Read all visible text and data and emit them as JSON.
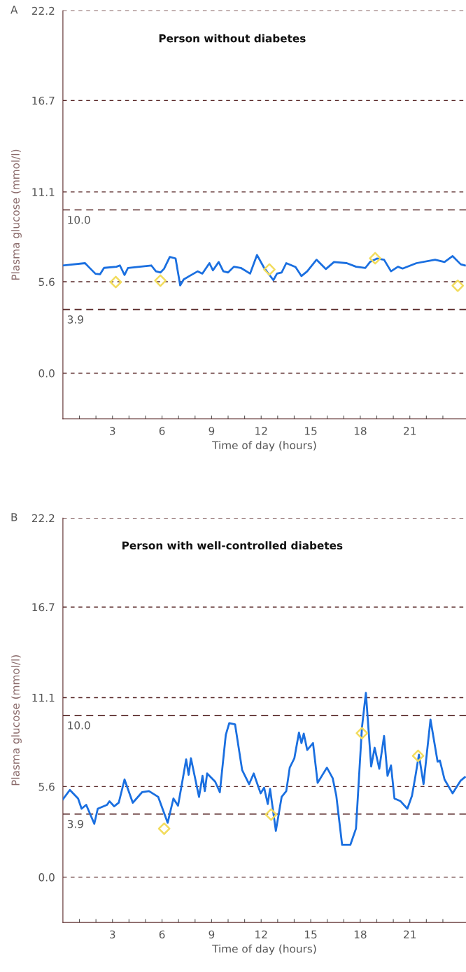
{
  "chart_data": [
    {
      "type": "line",
      "title": "Person without diabetes",
      "xlabel": "Time of day (hours)",
      "ylabel": "Plasma glucose (mmol/l)",
      "annotations": [
        "A"
      ],
      "xlim": [
        0,
        24.4
      ],
      "ylim": [
        -2.8,
        22.2
      ],
      "xticks": [
        {
          "value": 1,
          "label": null
        },
        {
          "value": 2,
          "label": null
        },
        3,
        {
          "value": 4,
          "label": null
        },
        {
          "value": 5,
          "label": null
        },
        6,
        {
          "value": 7,
          "label": null
        },
        {
          "value": 8,
          "label": null
        },
        9,
        {
          "value": 10,
          "label": null
        },
        {
          "value": 11,
          "label": null
        },
        12,
        {
          "value": 13,
          "label": null
        },
        {
          "value": 14,
          "label": null
        },
        15,
        {
          "value": 16,
          "label": null
        },
        {
          "value": 17,
          "label": null
        },
        18,
        {
          "value": 19,
          "label": null
        },
        {
          "value": 20,
          "label": null
        },
        21,
        {
          "value": 22,
          "label": null
        },
        {
          "value": 23,
          "label": null
        }
      ],
      "yticks": [
        {
          "value": 0,
          "label": "0.0"
        },
        5.6,
        11.1,
        16.7,
        22.2
      ],
      "grid": "y",
      "line_style": "solid",
      "ref_lines": [
        {
          "axis": "y",
          "value": 10.0,
          "label": "10.0",
          "color": "#5a2a2a",
          "line_style": "dashed"
        },
        {
          "axis": "y",
          "value": 3.9,
          "label": "3.9",
          "color": "#5a2a2a",
          "line_style": "dashed"
        }
      ],
      "series": [
        {
          "type": "line",
          "color": "#1a6fe0",
          "marker": "none",
          "x": [
            0,
            1.34,
            1.55,
            1.97,
            2.25,
            2.49,
            3.24,
            3.45,
            3.73,
            3.94,
            5.35,
            5.63,
            5.91,
            6.12,
            6.47,
            6.82,
            7.1,
            7.31,
            7.66,
            8.16,
            8.44,
            8.87,
            9.08,
            9.43,
            9.71,
            10.0,
            10.35,
            10.77,
            11.33,
            11.75,
            12.18,
            12.74,
            12.96,
            13.24,
            13.52,
            14.08,
            14.44,
            14.79,
            15.35,
            15.92,
            16.41,
            17.18,
            17.75,
            18.31,
            18.59,
            19.01,
            19.44,
            19.86,
            20.28,
            20.56,
            21.4,
            22.53,
            23.1,
            23.59,
            24.08,
            24.33
          ],
          "values": [
            6.6,
            6.74,
            6.52,
            6.09,
            6.06,
            6.45,
            6.52,
            6.6,
            6.02,
            6.45,
            6.6,
            6.24,
            6.17,
            6.39,
            7.12,
            7.03,
            5.38,
            5.74,
            5.95,
            6.24,
            6.1,
            6.74,
            6.3,
            6.81,
            6.24,
            6.17,
            6.52,
            6.45,
            6.1,
            7.24,
            6.45,
            5.7,
            6.1,
            6.17,
            6.74,
            6.5,
            5.95,
            6.24,
            6.95,
            6.38,
            6.81,
            6.74,
            6.52,
            6.45,
            6.81,
            7.02,
            6.95,
            6.24,
            6.52,
            6.41,
            6.74,
            6.95,
            6.81,
            7.17,
            6.67,
            6.6
          ]
        },
        {
          "type": "scatter",
          "color": "#f2dc5d",
          "marker": "diamond",
          "x": [
            3.2,
            5.9,
            12.5,
            18.9,
            23.9
          ],
          "values": [
            5.58,
            5.67,
            6.35,
            7.04,
            5.36
          ]
        }
      ]
    },
    {
      "type": "line",
      "title": "Person with well-controlled diabetes",
      "xlabel": "Time of day (hours)",
      "ylabel": "Plasma glucose (mmol/l)",
      "annotations": [
        "B"
      ],
      "xlim": [
        0,
        24.4
      ],
      "ylim": [
        -2.8,
        22.2
      ],
      "xticks": [
        {
          "value": 1,
          "label": null
        },
        {
          "value": 2,
          "label": null
        },
        3,
        {
          "value": 4,
          "label": null
        },
        {
          "value": 5,
          "label": null
        },
        6,
        {
          "value": 7,
          "label": null
        },
        {
          "value": 8,
          "label": null
        },
        9,
        {
          "value": 10,
          "label": null
        },
        {
          "value": 11,
          "label": null
        },
        12,
        {
          "value": 13,
          "label": null
        },
        {
          "value": 14,
          "label": null
        },
        15,
        {
          "value": 16,
          "label": null
        },
        {
          "value": 17,
          "label": null
        },
        18,
        {
          "value": 19,
          "label": null
        },
        {
          "value": 20,
          "label": null
        },
        21,
        {
          "value": 22,
          "label": null
        },
        {
          "value": 23,
          "label": null
        }
      ],
      "yticks": [
        {
          "value": 0,
          "label": "0.0"
        },
        5.6,
        11.1,
        16.7,
        22.2
      ],
      "grid": "y",
      "line_style": "solid",
      "ref_lines": [
        {
          "axis": "y",
          "value": 10.0,
          "label": "10.0",
          "color": "#5a2a2a",
          "line_style": "dashed"
        },
        {
          "axis": "y",
          "value": 3.9,
          "label": "3.9",
          "color": "#5a2a2a",
          "line_style": "dashed"
        }
      ],
      "series": [
        {
          "type": "line",
          "color": "#1a6fe0",
          "marker": "none",
          "x": [
            0,
            0.42,
            0.92,
            1.13,
            1.41,
            1.9,
            2.11,
            2.67,
            2.82,
            3.1,
            3.38,
            3.73,
            4.23,
            4.79,
            5.21,
            5.77,
            6.34,
            6.69,
            6.97,
            7.25,
            7.46,
            7.61,
            7.75,
            8.24,
            8.45,
            8.59,
            8.73,
            9.22,
            9.5,
            9.86,
            10.07,
            10.42,
            10.85,
            11.27,
            11.55,
            11.97,
            12.18,
            12.4,
            12.54,
            12.89,
            13.24,
            13.52,
            13.73,
            14.01,
            14.29,
            14.44,
            14.58,
            14.79,
            15.14,
            15.42,
            15.98,
            16.33,
            16.55,
            16.9,
            17.4,
            17.74,
            18.1,
            18.34,
            18.66,
            18.87,
            19.15,
            19.44,
            19.65,
            19.86,
            20.07,
            20.42,
            20.85,
            21.13,
            21.34,
            21.55,
            21.83,
            22.25,
            22.68,
            22.82,
            23.1,
            23.59,
            24.08,
            24.33
          ],
          "values": [
            4.81,
            5.39,
            4.86,
            4.23,
            4.47,
            3.3,
            4.23,
            4.47,
            4.69,
            4.38,
            4.6,
            6.04,
            4.6,
            5.25,
            5.32,
            4.96,
            3.36,
            4.86,
            4.42,
            6.04,
            7.28,
            6.33,
            7.35,
            4.96,
            6.26,
            5.32,
            6.41,
            5.9,
            5.25,
            8.8,
            9.52,
            9.45,
            6.62,
            5.75,
            6.41,
            5.18,
            5.53,
            4.52,
            5.46,
            2.86,
            4.96,
            5.32,
            6.77,
            7.35,
            8.94,
            8.29,
            8.87,
            7.86,
            8.29,
            5.83,
            6.77,
            6.12,
            5.03,
            2.0,
            2.0,
            3.0,
            9.23,
            11.4,
            6.84,
            8.0,
            6.7,
            8.73,
            6.26,
            6.91,
            4.86,
            4.71,
            4.23,
            5.03,
            6.26,
            7.57,
            5.75,
            9.74,
            7.14,
            7.21,
            6.04,
            5.18,
            5.97,
            6.18
          ]
        },
        {
          "type": "scatter",
          "color": "#f2dc5d",
          "marker": "diamond",
          "x": [
            6.13,
            12.6,
            18.1,
            21.5
          ],
          "values": [
            3.0,
            3.87,
            8.9,
            7.5
          ]
        }
      ]
    }
  ]
}
